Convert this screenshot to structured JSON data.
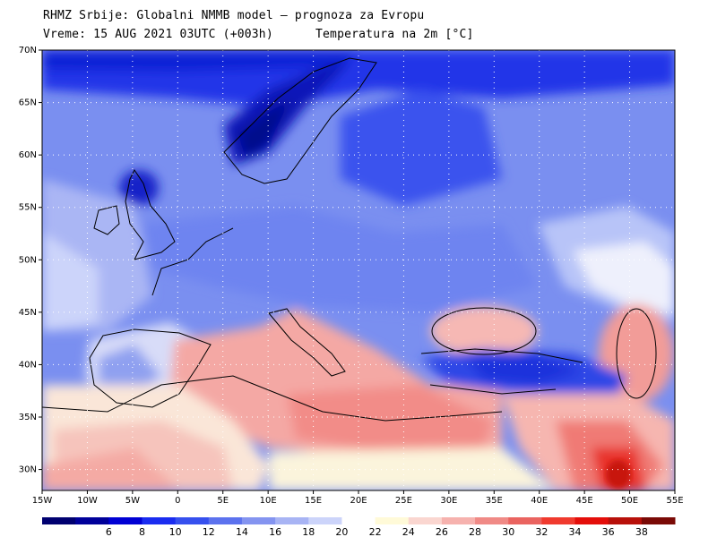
{
  "header": {
    "line1": "RHMZ Srbije: Globalni NMMB model — prognoza za Evropu",
    "line2": "Vreme: 15 AUG 2021 03UTC (+003h)",
    "line3": "Temperatura na 2m [°C]"
  },
  "map": {
    "lon_range": [
      -15,
      55
    ],
    "lat_range": [
      28,
      70
    ],
    "lon_ticks": [
      {
        "v": -15,
        "label": "15W"
      },
      {
        "v": -10,
        "label": "10W"
      },
      {
        "v": -5,
        "label": "5W"
      },
      {
        "v": 0,
        "label": "0"
      },
      {
        "v": 5,
        "label": "5E"
      },
      {
        "v": 10,
        "label": "10E"
      },
      {
        "v": 15,
        "label": "15E"
      },
      {
        "v": 20,
        "label": "20E"
      },
      {
        "v": 25,
        "label": "25E"
      },
      {
        "v": 30,
        "label": "30E"
      },
      {
        "v": 35,
        "label": "35E"
      },
      {
        "v": 40,
        "label": "40E"
      },
      {
        "v": 45,
        "label": "45E"
      },
      {
        "v": 50,
        "label": "50E"
      },
      {
        "v": 55,
        "label": "55E"
      }
    ],
    "lat_ticks": [
      {
        "v": 30,
        "label": "30N"
      },
      {
        "v": 35,
        "label": "35N"
      },
      {
        "v": 40,
        "label": "40N"
      },
      {
        "v": 45,
        "label": "45N"
      },
      {
        "v": 50,
        "label": "50N"
      },
      {
        "v": 55,
        "label": "55N"
      },
      {
        "v": 60,
        "label": "60N"
      },
      {
        "v": 65,
        "label": "65N"
      },
      {
        "v": 70,
        "label": "70N"
      }
    ],
    "grid": true,
    "background_color": "#7a8ff0"
  },
  "colorbar": {
    "bins": [
      {
        "color": "#000070"
      },
      {
        "color": "#00009a"
      },
      {
        "color": "#0000d4"
      },
      {
        "color": "#1a2cf0"
      },
      {
        "color": "#3650ee"
      },
      {
        "color": "#5c72ee"
      },
      {
        "color": "#8494f0"
      },
      {
        "color": "#a8b4f4"
      },
      {
        "color": "#ccd4fa"
      },
      {
        "color": "#ffffff"
      },
      {
        "color": "#fffad8"
      },
      {
        "color": "#fad6d0"
      },
      {
        "color": "#f6b2ae"
      },
      {
        "color": "#f08a86"
      },
      {
        "color": "#ea6460"
      },
      {
        "color": "#f03a2e"
      },
      {
        "color": "#e40e0a"
      },
      {
        "color": "#b8100a"
      },
      {
        "color": "#7a0a06"
      }
    ],
    "labels": [
      "6",
      "8",
      "10",
      "12",
      "14",
      "16",
      "18",
      "20",
      "22",
      "24",
      "26",
      "28",
      "30",
      "32",
      "34",
      "36",
      "38"
    ]
  }
}
